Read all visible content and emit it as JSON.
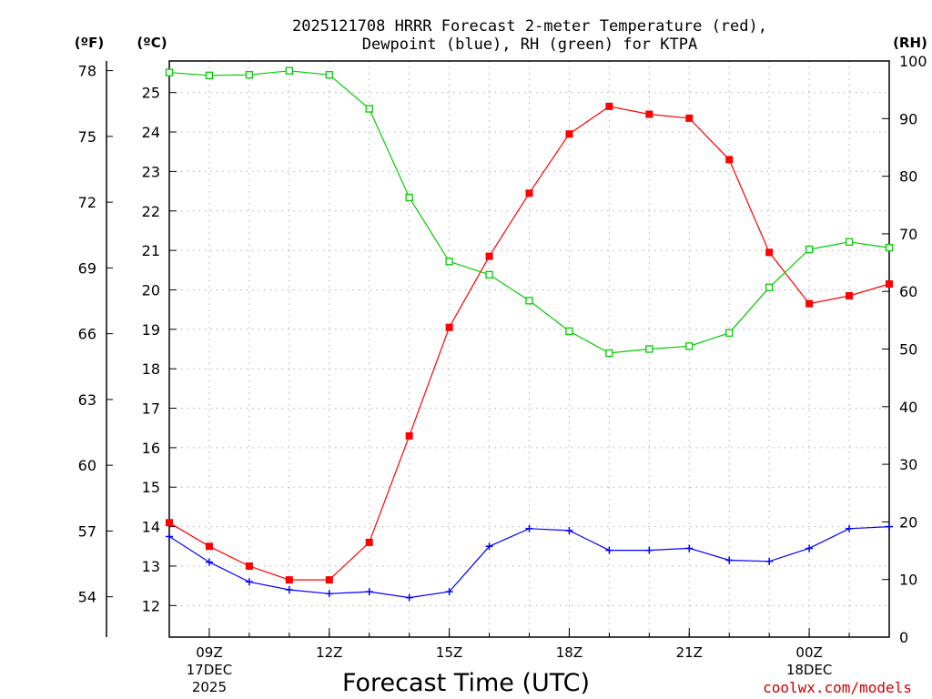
{
  "chart_data": {
    "type": "line",
    "title_line1": "2025121708 HRRR Forecast 2-meter Temperature (red),",
    "title_line2": "Dewpoint (blue), RH (green) for KTPA",
    "units": {
      "fahrenheit": "(ºF)",
      "celsius": "(ºC)",
      "rh": "(RH)"
    },
    "xlabel": "Forecast Time (UTC)",
    "credit": "coolwx.com/models",
    "x_hours": [
      8,
      9,
      10,
      11,
      12,
      13,
      14,
      15,
      16,
      17,
      18,
      19,
      20,
      21,
      22,
      23,
      24,
      25,
      26
    ],
    "x_range": [
      8,
      26
    ],
    "x_ticks": [
      {
        "hour": 9,
        "label": "09Z",
        "date": "17DEC",
        "year": "2025"
      },
      {
        "hour": 12,
        "label": "12Z"
      },
      {
        "hour": 15,
        "label": "15Z"
      },
      {
        "hour": 18,
        "label": "18Z"
      },
      {
        "hour": 21,
        "label": "21Z"
      },
      {
        "hour": 24,
        "label": "00Z",
        "date": "18DEC"
      }
    ],
    "celsius_range": [
      11.2,
      25.8
    ],
    "celsius_ticks": [
      "12",
      "13",
      "14",
      "15",
      "16",
      "17",
      "18",
      "19",
      "20",
      "21",
      "22",
      "23",
      "24",
      "25"
    ],
    "fahrenheit_ticks": [
      "54",
      "57",
      "60",
      "63",
      "66",
      "69",
      "72",
      "75",
      "78"
    ],
    "rh_range": [
      0,
      100
    ],
    "rh_ticks": [
      "0",
      "10",
      "20",
      "30",
      "40",
      "50",
      "60",
      "70",
      "80",
      "90",
      "100"
    ],
    "series": [
      {
        "name": "2-meter Temperature",
        "axis": "celsius",
        "color": "#ff0000",
        "marker": "filled-square",
        "values": [
          14.1,
          13.5,
          13.0,
          12.65,
          12.65,
          13.6,
          16.3,
          19.05,
          20.85,
          22.45,
          23.95,
          24.65,
          24.45,
          24.35,
          23.3,
          20.95,
          19.65,
          19.85,
          20.15
        ]
      },
      {
        "name": "Dewpoint",
        "axis": "celsius",
        "color": "#0000ff",
        "marker": "plus",
        "values": [
          13.75,
          13.1,
          12.6,
          12.4,
          12.3,
          12.35,
          12.2,
          12.35,
          13.5,
          13.95,
          13.9,
          13.4,
          13.4,
          13.45,
          13.15,
          13.12,
          13.45,
          13.95,
          14.0
        ]
      },
      {
        "name": "RH",
        "axis": "rh",
        "color": "#00cc00",
        "marker": "open-square",
        "values": [
          98.0,
          97.5,
          97.6,
          98.3,
          97.6,
          91.7,
          76.3,
          65.2,
          62.9,
          58.4,
          53.1,
          49.3,
          50.0,
          50.5,
          52.8,
          60.7,
          67.3,
          68.6,
          67.6
        ]
      }
    ]
  }
}
